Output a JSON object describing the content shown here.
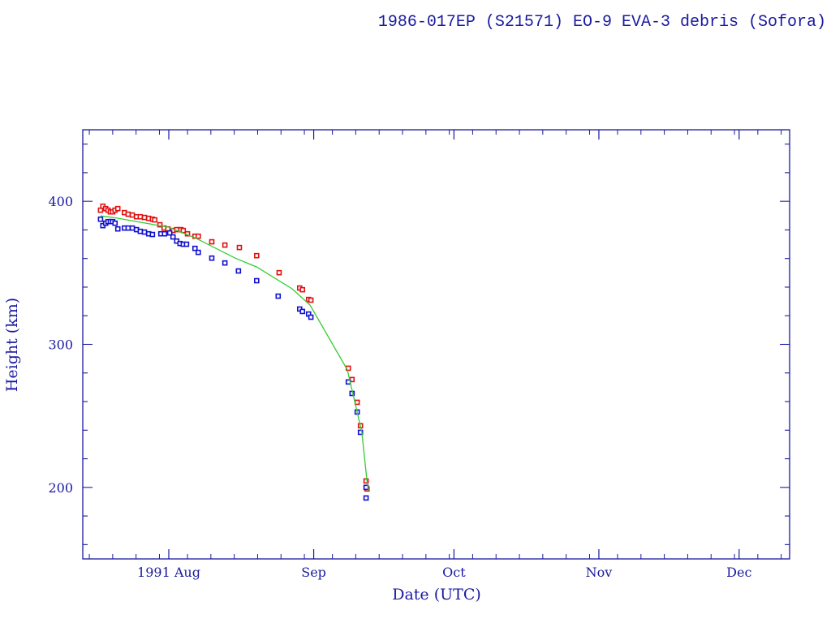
{
  "chart_data": {
    "type": "scatter",
    "title": "1986-017EP (S21571) EO-9 EVA-3 debris (Sofora)",
    "xlabel": "Date (UTC)",
    "ylabel": "Height (km)",
    "x_units": "days since 1991 Aug 1",
    "xlim": [
      -18.4,
      132.8
    ],
    "ylim": [
      150,
      450
    ],
    "x_major_ticks": [
      {
        "x": 0,
        "label": "1991 Aug"
      },
      {
        "x": 31,
        "label": "Sep"
      },
      {
        "x": 61,
        "label": "Oct"
      },
      {
        "x": 92,
        "label": "Nov"
      },
      {
        "x": 122,
        "label": "Dec"
      }
    ],
    "y_major_ticks": [
      {
        "y": 200,
        "label": "200"
      },
      {
        "y": 300,
        "label": "300"
      },
      {
        "y": 400,
        "label": "400"
      }
    ],
    "y_minor_step": 20,
    "grid": false,
    "legend": "none",
    "colors": {
      "axis": "#1a1aa0",
      "apogee": "#e01010",
      "perigee": "#1010d0",
      "mean": "#33cc33"
    },
    "series": [
      {
        "name": "apogee",
        "marker": "square",
        "points": [
          [
            -14.6,
            393.8
          ],
          [
            -14.1,
            396.6
          ],
          [
            -13.5,
            394.9
          ],
          [
            -13.0,
            393.8
          ],
          [
            -12.5,
            392.6
          ],
          [
            -12.0,
            392.6
          ],
          [
            -11.5,
            393.8
          ],
          [
            -10.9,
            394.9
          ],
          [
            -9.5,
            392.1
          ],
          [
            -8.7,
            391.0
          ],
          [
            -7.8,
            390.4
          ],
          [
            -6.9,
            389.2
          ],
          [
            -6.1,
            389.2
          ],
          [
            -5.2,
            388.7
          ],
          [
            -4.3,
            388.1
          ],
          [
            -3.5,
            387.5
          ],
          [
            -3.0,
            387.0
          ],
          [
            -1.9,
            383.6
          ],
          [
            -1.0,
            381.3
          ],
          [
            -0.2,
            380.7
          ],
          [
            0.9,
            379.6
          ],
          [
            1.7,
            380.2
          ],
          [
            2.6,
            380.2
          ],
          [
            3.1,
            379.6
          ],
          [
            4.0,
            377.3
          ],
          [
            5.6,
            375.6
          ],
          [
            6.3,
            375.6
          ],
          [
            9.2,
            371.7
          ],
          [
            12.0,
            369.4
          ],
          [
            15.1,
            367.7
          ],
          [
            18.8,
            362.0
          ],
          [
            23.6,
            350.1
          ],
          [
            28.0,
            339.4
          ],
          [
            28.6,
            338.2
          ],
          [
            29.9,
            331.4
          ],
          [
            30.4,
            330.9
          ],
          [
            38.4,
            283.3
          ],
          [
            39.2,
            275.4
          ],
          [
            40.3,
            259.5
          ],
          [
            41.0,
            243.1
          ],
          [
            42.2,
            204.5
          ],
          [
            42.4,
            198.9
          ]
        ]
      },
      {
        "name": "perigee",
        "marker": "square",
        "points": [
          [
            -14.6,
            387.5
          ],
          [
            -14.1,
            383.0
          ],
          [
            -13.5,
            384.7
          ],
          [
            -13.0,
            385.8
          ],
          [
            -12.5,
            385.8
          ],
          [
            -12.0,
            385.8
          ],
          [
            -11.5,
            384.7
          ],
          [
            -10.9,
            380.7
          ],
          [
            -9.5,
            381.3
          ],
          [
            -8.7,
            381.3
          ],
          [
            -7.8,
            381.3
          ],
          [
            -6.9,
            380.2
          ],
          [
            -6.1,
            379.0
          ],
          [
            -5.2,
            378.5
          ],
          [
            -4.3,
            377.3
          ],
          [
            -3.5,
            376.8
          ],
          [
            -1.7,
            377.3
          ],
          [
            -0.9,
            377.3
          ],
          [
            0.2,
            377.9
          ],
          [
            0.9,
            375.1
          ],
          [
            1.7,
            372.2
          ],
          [
            2.4,
            370.5
          ],
          [
            3.1,
            370.0
          ],
          [
            3.8,
            370.0
          ],
          [
            5.6,
            367.1
          ],
          [
            6.3,
            364.3
          ],
          [
            9.2,
            360.3
          ],
          [
            12.0,
            356.9
          ],
          [
            14.9,
            351.3
          ],
          [
            18.8,
            344.5
          ],
          [
            23.4,
            333.7
          ],
          [
            28.0,
            324.7
          ],
          [
            28.6,
            323.0
          ],
          [
            29.9,
            321.2
          ],
          [
            30.4,
            319.0
          ],
          [
            38.4,
            273.7
          ],
          [
            39.2,
            265.7
          ],
          [
            40.3,
            252.7
          ],
          [
            41.0,
            238.5
          ],
          [
            42.2,
            200.0
          ],
          [
            42.2,
            192.6
          ]
        ]
      },
      {
        "name": "mean",
        "marker": "line",
        "points": [
          [
            -14.6,
            389.8
          ],
          [
            -11.8,
            388.7
          ],
          [
            0.0,
            381.9
          ],
          [
            5.6,
            374.5
          ],
          [
            14.2,
            360.3
          ],
          [
            18.8,
            354.1
          ],
          [
            26.4,
            338.8
          ],
          [
            30.2,
            327.5
          ],
          [
            38.2,
            282.2
          ],
          [
            40.3,
            252.7
          ],
          [
            41.3,
            238.5
          ],
          [
            42.4,
            204.5
          ],
          [
            42.7,
            197.7
          ]
        ]
      }
    ]
  }
}
